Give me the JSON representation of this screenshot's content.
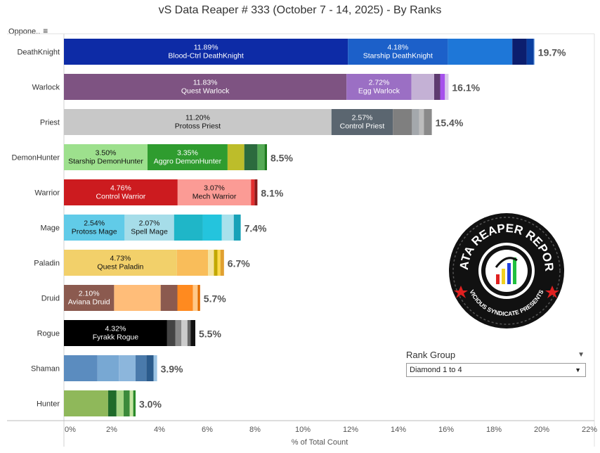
{
  "title": "vS Data Reaper #  333 (October 7 - 14, 2025) - By Ranks",
  "sort_label": "Oppone..",
  "rank_group": {
    "label": "Rank Group",
    "selected": "Diamond 1 to 4"
  },
  "logo": {
    "text_top": "DATA REAPER REPORT",
    "text_bottom": "VICIOUS SYNDICATE PRESENTS"
  },
  "chart_data": {
    "type": "bar",
    "orientation": "horizontal",
    "stacked": true,
    "xlabel": "% of Total Count",
    "xlim": [
      0,
      22
    ],
    "x_ticks": [
      "0%",
      "2%",
      "4%",
      "6%",
      "8%",
      "10%",
      "12%",
      "14%",
      "16%",
      "18%",
      "20%",
      "22%"
    ],
    "grid": false,
    "categories": [
      "DeathKnight",
      "Warlock",
      "Priest",
      "DemonHunter",
      "Warrior",
      "Mage",
      "Paladin",
      "Druid",
      "Rogue",
      "Shaman",
      "Hunter"
    ],
    "totals": [
      "19.7%",
      "16.1%",
      "15.4%",
      "8.5%",
      "8.1%",
      "7.4%",
      "6.7%",
      "5.7%",
      "5.5%",
      "3.9%",
      "3.0%"
    ],
    "rows": [
      {
        "class": "DeathKnight",
        "segments": [
          {
            "value": 11.89,
            "label": "Blood-Ctrl DeathKnight",
            "value_label": "11.89%",
            "color": "#0d2ba6"
          },
          {
            "value": 4.18,
            "label": "Starship DeathKnight",
            "value_label": "4.18%",
            "color": "#1c60c9"
          },
          {
            "value": 2.7,
            "color": "#1e77d8"
          },
          {
            "value": 0.6,
            "color": "#0c1e6e"
          },
          {
            "value": 0.3,
            "color": "#0a3fa0"
          },
          {
            "value": 0.03,
            "color": "#6aa3e6"
          }
        ]
      },
      {
        "class": "Warlock",
        "segments": [
          {
            "value": 11.83,
            "label": "Quest Warlock",
            "value_label": "11.83%",
            "color": "#7e5382"
          },
          {
            "value": 2.72,
            "label": "Egg Warlock",
            "value_label": "2.72%",
            "color": "#9b6fc4"
          },
          {
            "value": 0.95,
            "color": "#c4b1d5"
          },
          {
            "value": 0.25,
            "color": "#5e3a70"
          },
          {
            "value": 0.2,
            "color": "#a651ec"
          },
          {
            "value": 0.15,
            "color": "#d8c8ea"
          }
        ]
      },
      {
        "class": "Priest",
        "segments": [
          {
            "value": 11.2,
            "label": "Protoss Priest",
            "value_label": "11.20%",
            "color": "#c8c8c8"
          },
          {
            "value": 2.57,
            "label": "Control Priest",
            "value_label": "2.57%",
            "color": "#5b6670"
          },
          {
            "value": 0.8,
            "color": "#7f7f7f"
          },
          {
            "value": 0.3,
            "color": "#a4a8ac"
          },
          {
            "value": 0.2,
            "color": "#bcbcbc"
          },
          {
            "value": 0.33,
            "color": "#8a8a8a"
          }
        ]
      },
      {
        "class": "DemonHunter",
        "segments": [
          {
            "value": 3.5,
            "label": "Starship DemonHunter",
            "value_label": "3.50%",
            "color": "#9de08d"
          },
          {
            "value": 3.35,
            "label": "Aggro DemonHunter",
            "value_label": "3.35%",
            "color": "#2f9c2f"
          },
          {
            "value": 0.7,
            "color": "#bdbd2a"
          },
          {
            "value": 0.55,
            "color": "#2c6b3e"
          },
          {
            "value": 0.3,
            "color": "#55aa55"
          },
          {
            "value": 0.1,
            "color": "#1f7a1f"
          }
        ]
      },
      {
        "class": "Warrior",
        "segments": [
          {
            "value": 4.76,
            "label": "Control Warrior",
            "value_label": "4.76%",
            "color": "#cc1b1f"
          },
          {
            "value": 3.07,
            "label": "Mech Warrior",
            "value_label": "3.07%",
            "color": "#fb9b95"
          },
          {
            "value": 0.15,
            "color": "#e32f2f"
          },
          {
            "value": 0.12,
            "color": "#8b1a1a"
          }
        ]
      },
      {
        "class": "Mage",
        "segments": [
          {
            "value": 2.54,
            "label": "Protoss Mage",
            "value_label": "2.54%",
            "color": "#61cbe8"
          },
          {
            "value": 2.07,
            "label": "Spell Mage",
            "value_label": "2.07%",
            "color": "#a6dde9"
          },
          {
            "value": 1.2,
            "color": "#1fb6c8"
          },
          {
            "value": 0.8,
            "color": "#24c4dd"
          },
          {
            "value": 0.5,
            "color": "#a8e1ec"
          },
          {
            "value": 0.29,
            "color": "#17a2b8"
          }
        ]
      },
      {
        "class": "Paladin",
        "segments": [
          {
            "value": 4.73,
            "label": "Quest Paladin",
            "value_label": "4.73%",
            "color": "#f2d06a"
          },
          {
            "value": 1.3,
            "color": "#f9bd5a"
          },
          {
            "value": 0.25,
            "color": "#f5e3a0"
          },
          {
            "value": 0.15,
            "color": "#c2a800"
          },
          {
            "value": 0.12,
            "color": "#ffd94a"
          },
          {
            "value": 0.15,
            "color": "#e0a030"
          }
        ]
      },
      {
        "class": "Druid",
        "segments": [
          {
            "value": 2.1,
            "label": "Aviana Druid",
            "value_label": "2.10%",
            "color": "#8b5a4f"
          },
          {
            "value": 1.95,
            "color": "#ffbd79"
          },
          {
            "value": 0.7,
            "color": "#8b5a4f"
          },
          {
            "value": 0.65,
            "color": "#ff8a1f"
          },
          {
            "value": 0.2,
            "color": "#ffc888"
          },
          {
            "value": 0.1,
            "color": "#e06a00"
          }
        ]
      },
      {
        "class": "Rogue",
        "segments": [
          {
            "value": 4.32,
            "label": "Fyrakk Rogue",
            "value_label": "4.32%",
            "color": "#000000"
          },
          {
            "value": 0.35,
            "color": "#444444"
          },
          {
            "value": 0.25,
            "color": "#888888"
          },
          {
            "value": 0.25,
            "color": "#cccccc"
          },
          {
            "value": 0.13,
            "color": "#666666"
          },
          {
            "value": 0.2,
            "color": "#111111"
          }
        ]
      },
      {
        "class": "Shaman",
        "segments": [
          {
            "value": 1.4,
            "color": "#5b8cbf"
          },
          {
            "value": 0.9,
            "color": "#78a8d3"
          },
          {
            "value": 0.7,
            "color": "#8cb6dc"
          },
          {
            "value": 0.45,
            "color": "#4a7aab"
          },
          {
            "value": 0.3,
            "color": "#2b5b8c"
          },
          {
            "value": 0.15,
            "color": "#9cc4e4"
          }
        ]
      },
      {
        "class": "Hunter",
        "segments": [
          {
            "value": 1.85,
            "color": "#8fb85a"
          },
          {
            "value": 0.35,
            "color": "#1f6b2a"
          },
          {
            "value": 0.3,
            "color": "#a5d484"
          },
          {
            "value": 0.25,
            "color": "#3b8a3b"
          },
          {
            "value": 0.15,
            "color": "#c7e6a3"
          },
          {
            "value": 0.1,
            "color": "#2a8a2a"
          }
        ]
      }
    ]
  }
}
